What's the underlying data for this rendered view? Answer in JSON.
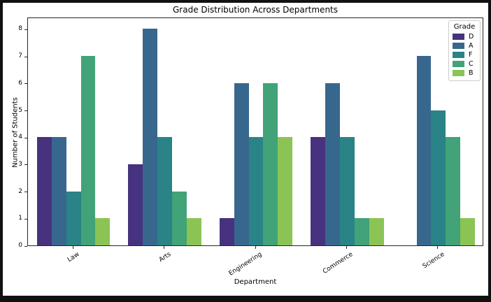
{
  "chart_data": {
    "type": "bar",
    "title": "Grade Distribution Across Departments",
    "xlabel": "Department",
    "ylabel": "Number of Students",
    "categories": [
      "Law",
      "Arts",
      "Engineering",
      "Commerce",
      "Science"
    ],
    "series": [
      {
        "name": "D",
        "color": "#46327e",
        "values": [
          4,
          3,
          1,
          4,
          0
        ]
      },
      {
        "name": "A",
        "color": "#38678e",
        "values": [
          4,
          8,
          6,
          6,
          7
        ]
      },
      {
        "name": "F",
        "color": "#2a8387",
        "values": [
          2,
          4,
          4,
          4,
          5
        ]
      },
      {
        "name": "C",
        "color": "#41a377",
        "values": [
          7,
          2,
          6,
          1,
          4
        ]
      },
      {
        "name": "B",
        "color": "#8bc455",
        "values": [
          1,
          1,
          4,
          1,
          1
        ]
      }
    ],
    "legend": {
      "title": "Grade",
      "position": "upper right"
    },
    "y_ticks": [
      0,
      1,
      2,
      3,
      4,
      5,
      6,
      7,
      8
    ],
    "ylim": [
      0,
      8.45
    ],
    "grid": false,
    "spine_color": "#262626",
    "background": "#ffffff",
    "frame_color": "#111111"
  }
}
